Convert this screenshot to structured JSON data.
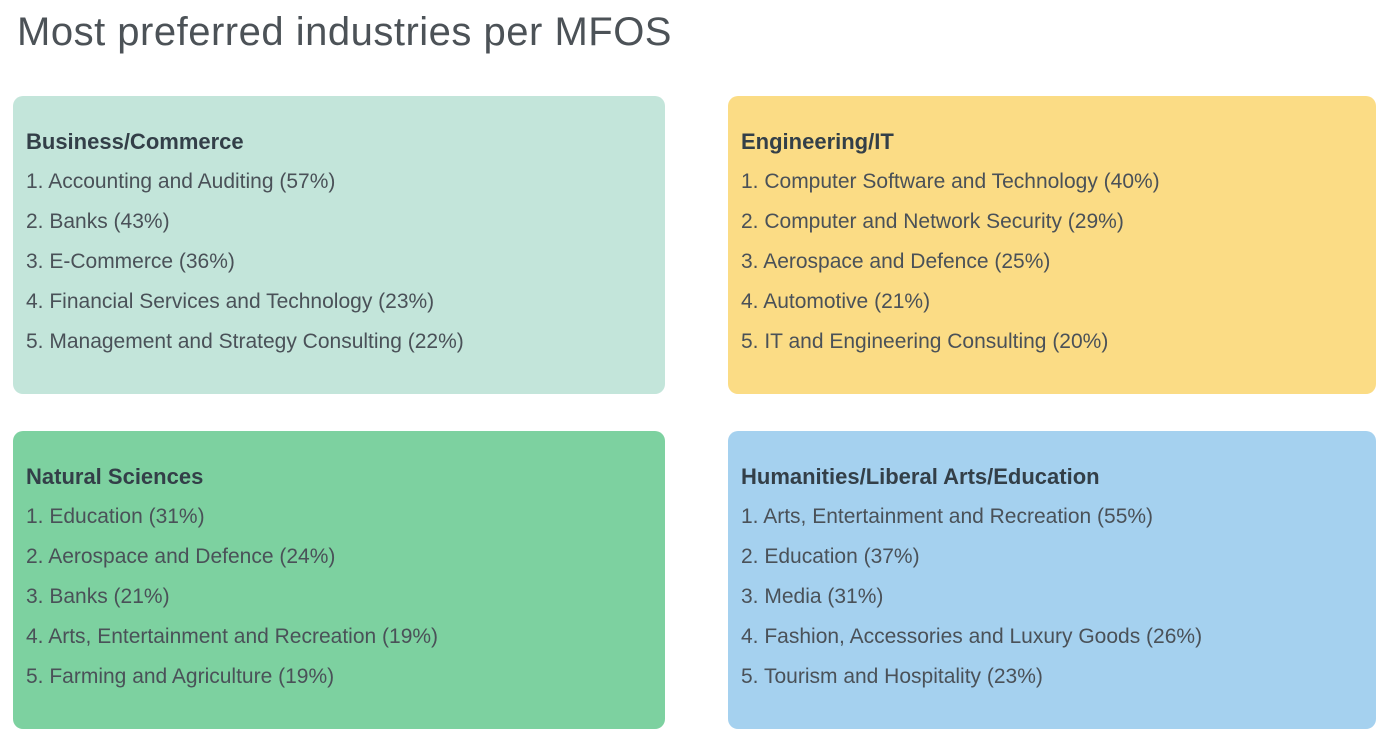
{
  "page": {
    "title": "Most preferred industries per MFOS"
  },
  "colors": {
    "background": "#FFFFFF",
    "title_text": "#4C5257",
    "card_heading_text": "#333F48",
    "card_body_text": "#4A5158",
    "card_business_commerce": "#C3E5DA",
    "card_engineering_it": "#FBDC85",
    "card_natural_sciences": "#7DD1A0",
    "card_humanities": "#A5D1EF"
  },
  "cards": [
    {
      "id": "business-commerce",
      "title": "Business/Commerce",
      "color": "#C3E5DA",
      "lines": [
        "1. Accounting and Auditing (57%)",
        "2. Banks (43%)",
        "3. E-Commerce (36%)",
        "4. Financial Services and Technology (23%)",
        "5. Management and Strategy Consulting (22%)"
      ]
    },
    {
      "id": "engineering-it",
      "title": "Engineering/IT",
      "color": "#FBDC85",
      "lines": [
        "1. Computer Software and Technology (40%)",
        "2. Computer and Network Security (29%)",
        "3. Aerospace and Defence (25%)",
        "4. Automotive (21%)",
        "5. IT and Engineering Consulting (20%)"
      ]
    },
    {
      "id": "natural-sciences",
      "title": "Natural Sciences",
      "color": "#7DD1A0",
      "lines": [
        "1. Education (31%)",
        "2. Aerospace and Defence (24%)",
        "3. Banks (21%)",
        "4. Arts, Entertainment and Recreation (19%)",
        "5. Farming and Agriculture (19%)"
      ]
    },
    {
      "id": "humanities-liberal-arts-education",
      "title": "Humanities/Liberal Arts/Education",
      "color": "#A5D1EF",
      "lines": [
        "1. Arts, Entertainment and Recreation (55%)",
        "2. Education (37%)",
        "3. Media (31%)",
        "4. Fashion, Accessories and Luxury Goods (26%)",
        "5. Tourism and Hospitality (23%)"
      ]
    }
  ],
  "chart_data": [
    {
      "type": "table",
      "title": "Business/Commerce",
      "categories": [
        "Accounting and Auditing",
        "Banks",
        "E-Commerce",
        "Financial Services and Technology",
        "Management and Strategy Consulting"
      ],
      "values": [
        57,
        43,
        36,
        23,
        22
      ],
      "unit": "%"
    },
    {
      "type": "table",
      "title": "Engineering/IT",
      "categories": [
        "Computer Software and Technology",
        "Computer and Network Security",
        "Aerospace and Defence",
        "Automotive",
        "IT and Engineering Consulting"
      ],
      "values": [
        40,
        29,
        25,
        21,
        20
      ],
      "unit": "%"
    },
    {
      "type": "table",
      "title": "Natural Sciences",
      "categories": [
        "Education",
        "Aerospace and Defence",
        "Banks",
        "Arts, Entertainment and Recreation",
        "Farming and Agriculture"
      ],
      "values": [
        31,
        24,
        21,
        19,
        19
      ],
      "unit": "%"
    },
    {
      "type": "table",
      "title": "Humanities/Liberal Arts/Education",
      "categories": [
        "Arts, Entertainment and Recreation",
        "Education",
        "Media",
        "Fashion, Accessories and Luxury Goods",
        "Tourism and Hospitality"
      ],
      "values": [
        55,
        37,
        31,
        26,
        23
      ],
      "unit": "%"
    }
  ]
}
